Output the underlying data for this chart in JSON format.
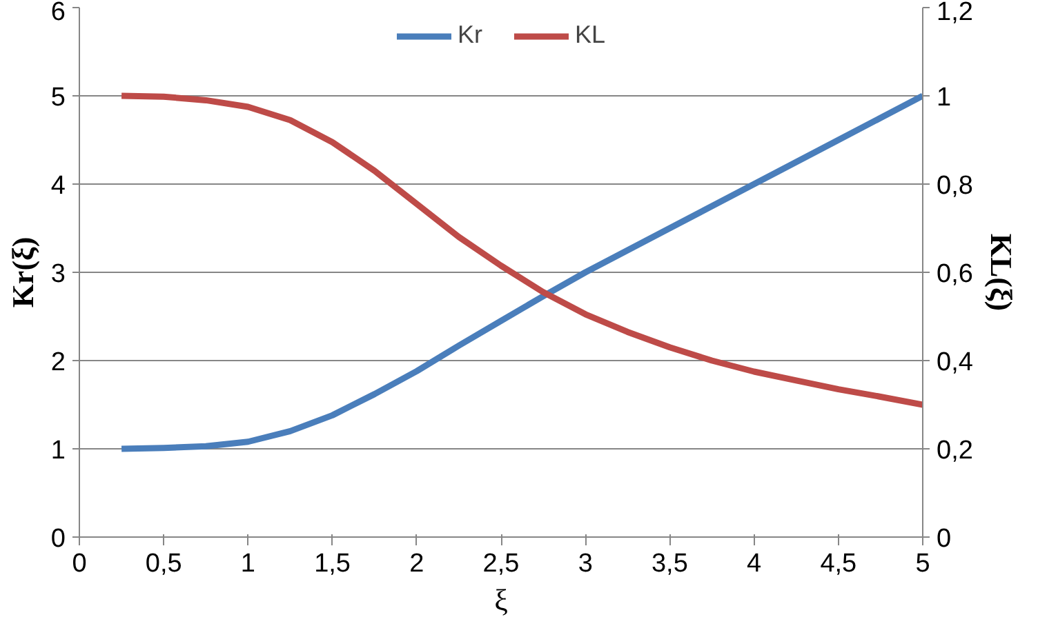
{
  "chart_data": {
    "type": "line",
    "xlabel": "ξ",
    "ylabel": "Kr(ξ)",
    "y2label": "KL(ξ)",
    "x": [
      0.25,
      0.5,
      0.75,
      1,
      1.25,
      1.5,
      1.75,
      2,
      2.25,
      2.5,
      2.75,
      3,
      3.25,
      3.5,
      3.75,
      4,
      4.25,
      4.5,
      4.75,
      5
    ],
    "series": [
      {
        "name": "Kr",
        "color": "#4a7ebb",
        "values": [
          1.0,
          1.01,
          1.03,
          1.08,
          1.2,
          1.38,
          1.62,
          1.88,
          2.17,
          2.45,
          2.73,
          3.0,
          3.25,
          3.5,
          3.75,
          4.0,
          4.25,
          4.5,
          4.75,
          5.0
        ]
      },
      {
        "name": "KL",
        "color": "#be4b48",
        "axis": "y2",
        "values": [
          1.0,
          0.998,
          0.99,
          0.975,
          0.945,
          0.895,
          0.83,
          0.755,
          0.68,
          0.615,
          0.555,
          0.505,
          0.465,
          0.43,
          0.4,
          0.375,
          0.355,
          0.335,
          0.318,
          0.3
        ]
      }
    ],
    "xlim": [
      0,
      5
    ],
    "xticks": [
      0,
      {
        "value": 0.5,
        "label": "0,5"
      },
      1,
      {
        "value": 1.5,
        "label": "1,5"
      },
      2,
      {
        "value": 2.5,
        "label": "2,5"
      },
      3,
      {
        "value": 3.5,
        "label": "3,5"
      },
      4,
      {
        "value": 4.5,
        "label": "4,5"
      },
      5
    ],
    "ylim": [
      0,
      6
    ],
    "yticks": [
      0,
      1,
      2,
      3,
      4,
      5,
      6
    ],
    "y2lim": [
      0,
      1.2
    ],
    "y2ticks": [
      0,
      {
        "value": 0.2,
        "label": "0,2"
      },
      {
        "value": 0.4,
        "label": "0,4"
      },
      {
        "value": 0.6,
        "label": "0,6"
      },
      {
        "value": 0.8,
        "label": "0,8"
      },
      1,
      {
        "value": 1.2,
        "label": "1,2"
      }
    ],
    "grid": "y",
    "legend": "top",
    "marker": "none",
    "line_style": "solid"
  }
}
